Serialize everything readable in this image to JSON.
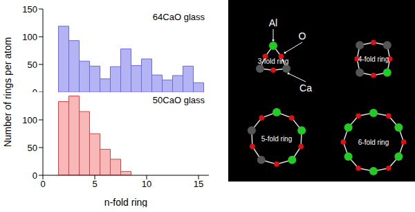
{
  "chart_data": [
    {
      "type": "histogram",
      "title": "64CaO glass",
      "ylabel": "Number of rings per atom",
      "bins": [
        1.5,
        2.5,
        3.5,
        4.5,
        5.5,
        6.5,
        7.5,
        8.5,
        9.5,
        10.5,
        11.5,
        12.5,
        13.5,
        14.5,
        15.5
      ],
      "values": [
        119,
        93,
        56,
        47,
        24,
        46,
        78,
        48,
        60,
        31,
        22,
        30,
        47,
        17
      ],
      "color": "#b4b4f4",
      "xlim": [
        0,
        16
      ],
      "xticks": [
        0,
        5,
        10,
        15
      ],
      "ylim": [
        0,
        150
      ],
      "yticks": [
        0,
        50,
        100,
        150
      ],
      "tick_labels": "y"
    },
    {
      "type": "histogram",
      "title": "50CaO glass",
      "xlabel": "n-fold ring",
      "bins": [
        1.5,
        2.5,
        3.5,
        4.5,
        5.5,
        6.5,
        7.5,
        8.5
      ],
      "values": [
        133,
        143,
        115,
        75,
        47,
        29,
        7
      ],
      "color": "#f8b8b8",
      "xlim": [
        0,
        16
      ],
      "xticks": [
        0,
        5,
        10,
        15
      ],
      "ylim": [
        0,
        150
      ],
      "yticks": [
        0,
        50,
        100
      ]
    }
  ],
  "diagram": {
    "atoms": [
      {
        "label": "Al",
        "color": "#22cc22"
      },
      {
        "label": "O",
        "color": "#dd1111"
      },
      {
        "label": "Ca",
        "color": "#555555"
      }
    ],
    "rings": [
      {
        "label": "3-fold ring"
      },
      {
        "label": "4-fold ring"
      },
      {
        "label": "5-fold ring"
      },
      {
        "label": "6-fold ring"
      }
    ]
  }
}
